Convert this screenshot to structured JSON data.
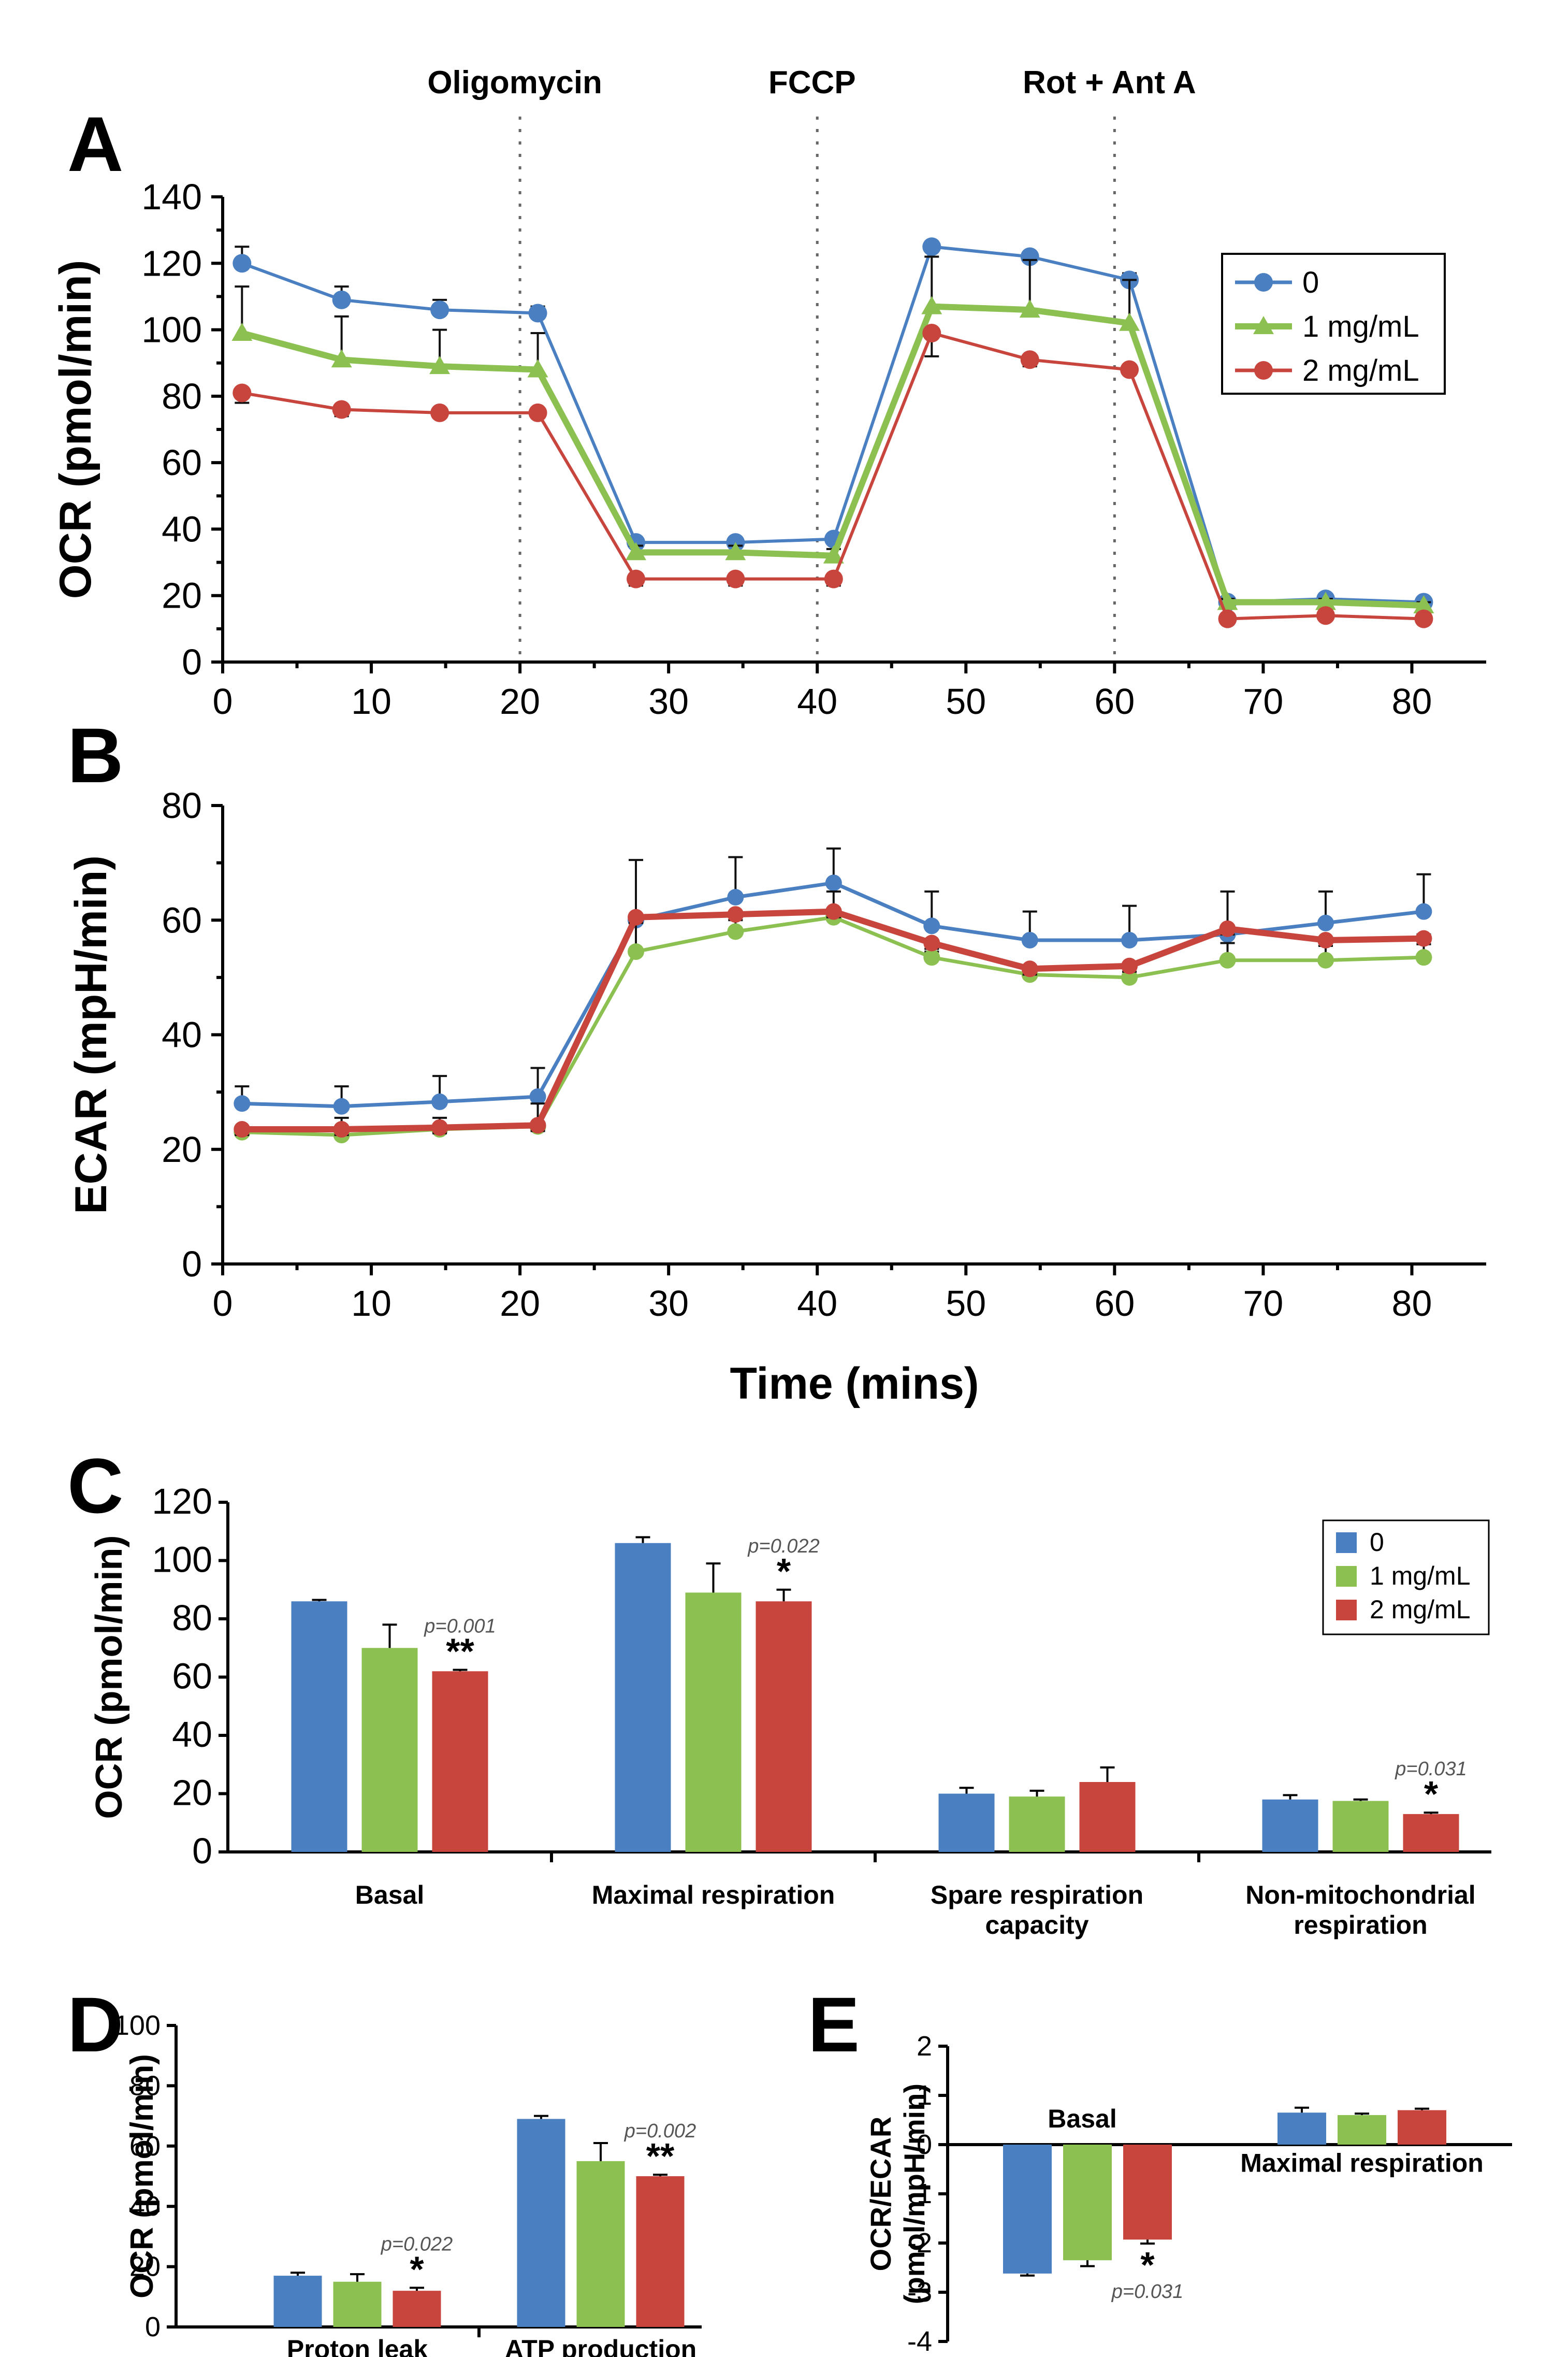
{
  "colors": {
    "control": "#4a7fc1",
    "low": "#8cc152",
    "high": "#c8453e"
  },
  "legend": [
    "0",
    "1 mg/mL",
    "2 mg/mL"
  ],
  "chart_data": [
    {
      "id": "A",
      "panel_label": "A",
      "type": "line",
      "ylabel": "OCR (pmol/min)",
      "xlabel": "",
      "xlim": [
        0,
        85
      ],
      "ylim": [
        0,
        140
      ],
      "yticks": [
        0,
        20,
        40,
        60,
        80,
        100,
        120,
        140
      ],
      "xticks": [
        0,
        10,
        20,
        30,
        40,
        50,
        60,
        70,
        80
      ],
      "injections": [
        {
          "x": 20,
          "label": "Oligomycin"
        },
        {
          "x": 40,
          "label": "FCCP"
        },
        {
          "x": 60,
          "label": "Rot + Ant A"
        }
      ],
      "legend_position": "top-right",
      "x": [
        1.3,
        8,
        14.6,
        21.2,
        27.8,
        34.5,
        41.1,
        47.7,
        54.3,
        61,
        67.6,
        74.2,
        80.8
      ],
      "series": [
        {
          "name": "0",
          "marker": "circle",
          "values": [
            120,
            109,
            106,
            105,
            36,
            36,
            37,
            125,
            122,
            115,
            18,
            19,
            18
          ],
          "errors": [
            5,
            4,
            3,
            2,
            1,
            1,
            1,
            1,
            1,
            2,
            1,
            1,
            1
          ]
        },
        {
          "name": "1 mg/mL",
          "marker": "triangle",
          "values": [
            99,
            91,
            89,
            88,
            33,
            33,
            32,
            107,
            106,
            102,
            18,
            18,
            17
          ],
          "errors": [
            14,
            13,
            11,
            11,
            2,
            2,
            2,
            15,
            15,
            13,
            1,
            1,
            1
          ]
        },
        {
          "name": "2 mg/mL",
          "marker": "circle",
          "values": [
            81,
            76,
            75,
            75,
            25,
            25,
            25,
            99,
            91,
            88,
            13,
            14,
            13
          ],
          "errors": [
            3,
            2,
            1,
            1,
            2,
            2,
            2,
            7,
            2,
            1,
            1,
            1,
            1
          ]
        }
      ]
    },
    {
      "id": "B",
      "panel_label": "B",
      "type": "line",
      "ylabel": "ECAR (mpH/min)",
      "xlabel": "Time (mins)",
      "xlim": [
        0,
        85
      ],
      "ylim": [
        0,
        80
      ],
      "yticks": [
        0,
        20,
        40,
        60,
        80
      ],
      "xticks": [
        0,
        10,
        20,
        30,
        40,
        50,
        60,
        70,
        80
      ],
      "x": [
        1.3,
        8,
        14.6,
        21.2,
        27.8,
        34.5,
        41.1,
        47.7,
        54.3,
        61,
        67.6,
        74.2,
        80.8
      ],
      "series": [
        {
          "name": "0",
          "marker": "circle",
          "values": [
            28,
            27.5,
            28.3,
            29.2,
            60,
            64,
            66.5,
            59,
            56.5,
            56.5,
            57.5,
            59.5,
            61.5
          ],
          "errors": [
            3,
            3.5,
            4.5,
            5,
            10.5,
            7,
            6,
            6,
            5,
            6,
            7.5,
            5.5,
            6.5
          ]
        },
        {
          "name": "1 mg/mL",
          "marker": "circle",
          "values": [
            23,
            22.5,
            23.5,
            24,
            54.5,
            58,
            60.5,
            53.5,
            50.5,
            50,
            53,
            53,
            53.5
          ],
          "errors": [
            1,
            3,
            2,
            4,
            6.5,
            3.5,
            4.5,
            1,
            1,
            2,
            3,
            3,
            4
          ]
        },
        {
          "name": "2 mg/mL",
          "marker": "circle",
          "values": [
            23.5,
            23.5,
            23.8,
            24.2,
            60.5,
            61,
            61.5,
            56,
            51.5,
            52,
            58.5,
            56.5,
            56.8
          ],
          "errors": [
            1,
            1,
            1,
            1,
            1,
            1,
            1,
            1,
            1,
            1,
            1,
            1,
            1
          ]
        }
      ]
    },
    {
      "id": "C",
      "panel_label": "C",
      "type": "bar",
      "ylabel": "OCR (pmol/min)",
      "ylim": [
        0,
        120
      ],
      "yticks": [
        0,
        20,
        40,
        60,
        80,
        100,
        120
      ],
      "categories": [
        "Basal",
        "Maximal respiration",
        "Spare respiration\ncapacity",
        "Non-mitochondrial\nrespiration"
      ],
      "legend_position": "top-right",
      "series": [
        {
          "name": "0",
          "values": [
            86,
            106,
            20,
            18
          ],
          "errors": [
            0.5,
            2,
            2,
            1.5
          ]
        },
        {
          "name": "1 mg/mL",
          "values": [
            70,
            89,
            19,
            17.5
          ],
          "errors": [
            8,
            10,
            2,
            0.5
          ]
        },
        {
          "name": "2 mg/mL",
          "values": [
            62,
            86,
            24,
            13
          ],
          "errors": [
            0.5,
            4,
            5,
            0.5
          ]
        }
      ],
      "annotations": [
        {
          "category": 0,
          "stars": "**",
          "p": "p=0.001"
        },
        {
          "category": 1,
          "stars": "*",
          "p": "p=0.022"
        },
        {
          "category": 3,
          "stars": "*",
          "p": "p=0.031"
        }
      ]
    },
    {
      "id": "D",
      "panel_label": "D",
      "type": "bar",
      "ylabel": "OCR (pmol/min)",
      "ylim": [
        0,
        100
      ],
      "yticks": [
        0,
        20,
        40,
        60,
        80,
        100
      ],
      "categories": [
        "Proton leak",
        "ATP production"
      ],
      "series": [
        {
          "name": "0",
          "values": [
            17,
            69
          ],
          "errors": [
            1,
            1
          ]
        },
        {
          "name": "1 mg/mL",
          "values": [
            15,
            55
          ],
          "errors": [
            2.5,
            6
          ]
        },
        {
          "name": "2 mg/mL",
          "values": [
            12,
            50
          ],
          "errors": [
            1,
            0.5
          ]
        }
      ],
      "annotations": [
        {
          "category": 0,
          "stars": "*",
          "p": "p=0.022"
        },
        {
          "category": 1,
          "stars": "**",
          "p": "p=0.002"
        }
      ]
    },
    {
      "id": "E",
      "panel_label": "E",
      "type": "bar",
      "ylabel": "OCR/ECAR",
      "ylabel2": "(pmol/mpH/min)",
      "ylim": [
        -4,
        2
      ],
      "yticks": [
        -4,
        -3,
        -2,
        -1,
        0,
        1,
        2
      ],
      "categories": [
        "Basal",
        "Maximal respiration"
      ],
      "series": [
        {
          "name": "0",
          "values": [
            -2.62,
            0.65
          ],
          "errors": [
            0.04,
            0.1
          ]
        },
        {
          "name": "1 mg/mL",
          "values": [
            -2.35,
            0.6
          ],
          "errors": [
            0.12,
            0.03
          ]
        },
        {
          "name": "2 mg/mL",
          "values": [
            -1.93,
            0.7
          ],
          "errors": [
            0.08,
            0.03
          ]
        }
      ],
      "annotations": [
        {
          "category": 0,
          "stars": "*",
          "p": "p=0.031"
        }
      ]
    }
  ]
}
